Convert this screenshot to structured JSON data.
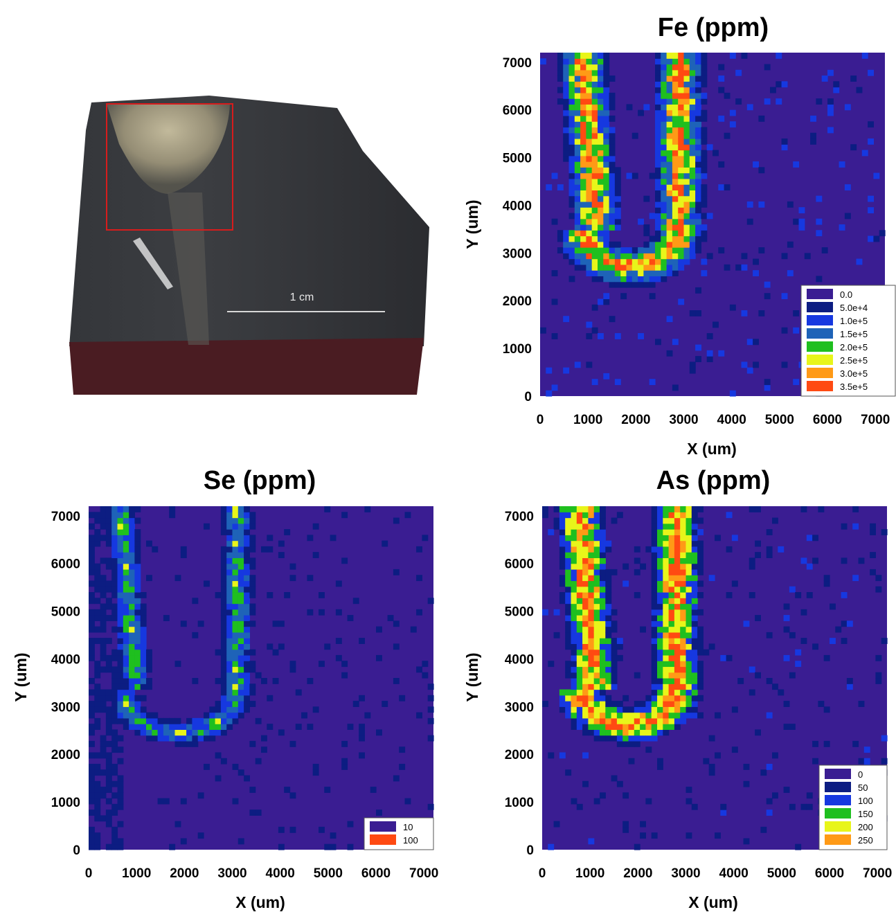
{
  "photo": {
    "scale_label": "1 cm"
  },
  "colors": {
    "c0": "#3a1d92",
    "c1": "#0c1d82",
    "c2": "#1638e0",
    "c3": "#1e63b8",
    "c4": "#1fbf1f",
    "c5": "#e8f51a",
    "c6": "#ff9a16",
    "c7": "#ff4a12",
    "roi": "#d81c1c"
  },
  "chart_data": [
    {
      "type": "heatmap",
      "title": "Fe (ppm)",
      "xlabel": "X (um)",
      "ylabel": "Y (um)",
      "xlim": [
        0,
        7200
      ],
      "ylim": [
        0,
        7200
      ],
      "xticks": [
        "0",
        "1000",
        "2000",
        "3000",
        "4000",
        "5000",
        "6000",
        "7000"
      ],
      "yticks": [
        "0",
        "1000",
        "2000",
        "3000",
        "4000",
        "5000",
        "6000",
        "7000"
      ],
      "legend_position": "bottom-right",
      "legend": [
        {
          "label": "0.0",
          "color": "#3a1d92"
        },
        {
          "label": "5.0e+4",
          "color": "#0c1d82"
        },
        {
          "label": "1.0e+5",
          "color": "#1638e0"
        },
        {
          "label": "1.5e+5",
          "color": "#1e63b8"
        },
        {
          "label": "2.0e+5",
          "color": "#1fbf1f"
        },
        {
          "label": "2.5e+5",
          "color": "#e8f51a"
        },
        {
          "label": "3.0e+5",
          "color": "#ff9a16"
        },
        {
          "label": "3.5e+5",
          "color": "#ff4a12"
        }
      ]
    },
    {
      "type": "heatmap",
      "title": "Se (ppm)",
      "xlabel": "X (um)",
      "ylabel": "Y (um)",
      "xlim": [
        0,
        7200
      ],
      "ylim": [
        0,
        7200
      ],
      "xticks": [
        "0",
        "1000",
        "2000",
        "3000",
        "4000",
        "5000",
        "6000",
        "7000"
      ],
      "yticks": [
        "0",
        "1000",
        "2000",
        "3000",
        "4000",
        "5000",
        "6000",
        "7000"
      ],
      "legend_position": "bottom-right",
      "legend": [
        {
          "label": "10",
          "color": "#3a1d92"
        },
        {
          "label": "100",
          "color": "#ff4a12"
        }
      ]
    },
    {
      "type": "heatmap",
      "title": "As (ppm)",
      "xlabel": "X (um)",
      "ylabel": "Y (um)",
      "xlim": [
        0,
        7200
      ],
      "ylim": [
        0,
        7200
      ],
      "xticks": [
        "0",
        "1000",
        "2000",
        "3000",
        "4000",
        "5000",
        "6000",
        "7000"
      ],
      "yticks": [
        "0",
        "1000",
        "2000",
        "3000",
        "4000",
        "5000",
        "6000",
        "7000"
      ],
      "legend_position": "bottom-right",
      "legend": [
        {
          "label": "0",
          "color": "#3a1d92"
        },
        {
          "label": "50",
          "color": "#0c1d82"
        },
        {
          "label": "100",
          "color": "#1638e0"
        },
        {
          "label": "150",
          "color": "#1fbf1f"
        },
        {
          "label": "200",
          "color": "#e8f51a"
        },
        {
          "label": "250",
          "color": "#ff9a16"
        }
      ]
    }
  ]
}
